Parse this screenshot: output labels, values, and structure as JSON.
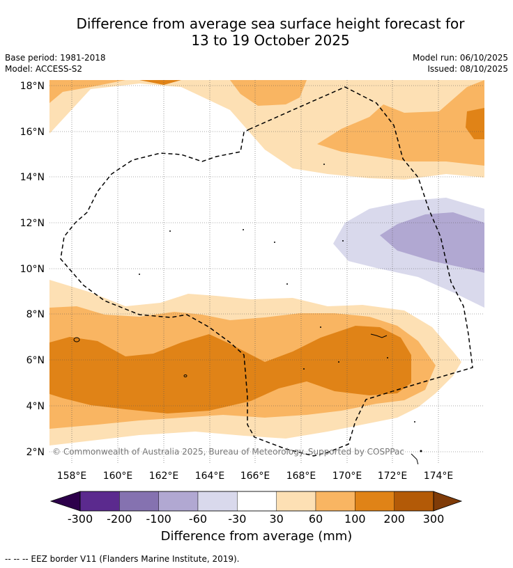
{
  "title_line1": "Difference from average sea surface height forecast for",
  "title_line2": "13 to 19 October 2025",
  "base_period": "Base period: 1981-2018",
  "model": "Model: ACCESS-S2",
  "model_run": "Model run: 06/10/2025",
  "issued": "Issued: 08/10/2025",
  "copyright": "© Commonwealth of Australia 2025, Bureau of Meteorology. Supported by COSPPac",
  "lat_labels": [
    "18°N",
    "16°N",
    "14°N",
    "12°N",
    "10°N",
    "8°N",
    "6°N",
    "4°N",
    "2°N"
  ],
  "lon_labels": [
    "158°E",
    "160°E",
    "162°E",
    "164°E",
    "166°E",
    "168°E",
    "170°E",
    "172°E",
    "174°E"
  ],
  "colorbar": {
    "ticks": [
      "-300",
      "-200",
      "-100",
      "-60",
      "-30",
      "30",
      "60",
      "100",
      "200",
      "300"
    ],
    "colors": [
      "#5b2a8e",
      "#8572b0",
      "#b1a8d2",
      "#d9d9ec",
      "#ffffff",
      "#fde0b4",
      "#f9b562",
      "#e08317",
      "#b35a07"
    ],
    "under_color": "#2d004b",
    "over_color": "#7f3b08",
    "label": "Difference from average (mm)"
  },
  "legend_footer": "--  --  -- EEZ border V11 (Flanders Marine Institute, 2019)."
}
